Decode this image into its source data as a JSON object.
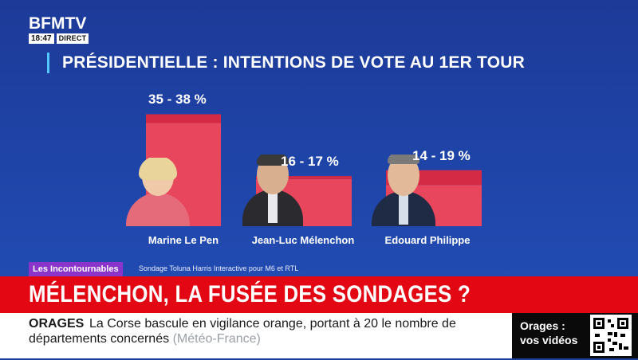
{
  "brand": {
    "name": "BFMTV",
    "time": "18:47",
    "live_label": "DIRECT"
  },
  "colors": {
    "background": "#1f44a8",
    "bar_main": "#e8465c",
    "bar_range": "#d42a45",
    "accent_bar": "#53c7ff",
    "headline_band": "#e30613",
    "tag": "#8a34c9"
  },
  "chart_data": {
    "type": "bar",
    "title": "PRÉSIDENTIELLE : INTENTIONS DE VOTE AU 1ER TOUR",
    "categories": [
      "Marine Le Pen",
      "Jean-Luc Mélenchon",
      "Edouard Philippe"
    ],
    "series": [
      {
        "low": [
          35,
          16,
          14
        ],
        "high": [
          38,
          17,
          19
        ]
      }
    ],
    "value_labels": [
      "35 - 38 %",
      "16 - 17 %",
      "14 - 19 %"
    ],
    "ylim": [
      0,
      40
    ],
    "grid": false,
    "legend": "none"
  },
  "source_strip": {
    "tag": "Les Incontournables",
    "source": "Sondage Toluna Harris Interactive pour M6 et RTL"
  },
  "headline": "MÉLENCHON, LA FUSÉE DES SONDAGES ?",
  "ticker": {
    "keyword": "ORAGES",
    "line1": "La Corse bascule en vigilance orange, portant à 20 le nombre de",
    "line2": "départements concernés",
    "source": "(Météo-France)"
  },
  "promo": {
    "line1": "Orages :",
    "line2": "vos vidéos"
  }
}
